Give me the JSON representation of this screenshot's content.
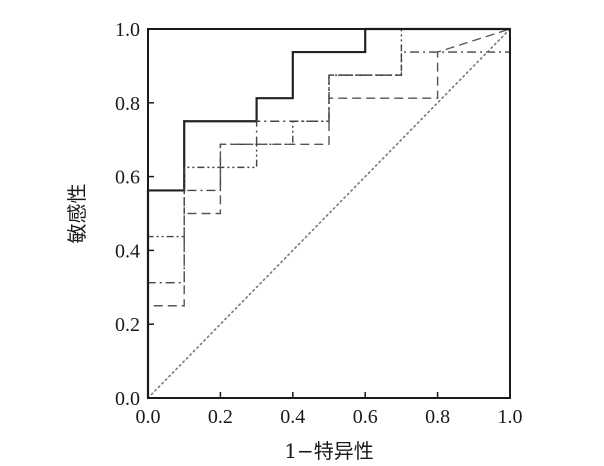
{
  "chart_data": {
    "type": "line",
    "title": "",
    "xlabel": "1−特异性",
    "ylabel": "敏感性",
    "xlim": [
      0,
      1
    ],
    "ylim": [
      0,
      1
    ],
    "x_ticks": [
      "0.0",
      "0.2",
      "0.4",
      "0.6",
      "0.8",
      "1.0"
    ],
    "y_ticks": [
      "0.0",
      "0.2",
      "0.4",
      "0.6",
      "0.8",
      "1.0"
    ],
    "grid": false,
    "legend": "none",
    "colors": {
      "solid": "#222222",
      "dashed": "#555555",
      "dashdot": "#444444",
      "dashdotdot": "#444444",
      "reference": "#777777"
    },
    "series": [
      {
        "style": "solid",
        "x": [
          0,
          0,
          0.1,
          0.1,
          0.3,
          0.3,
          0.4,
          0.4,
          0.6,
          0.6,
          1.0
        ],
        "y": [
          0,
          0.5625,
          0.5625,
          0.75,
          0.75,
          0.8125,
          0.8125,
          0.9375,
          0.9375,
          1.0,
          1.0
        ]
      },
      {
        "style": "dashdot",
        "x": [
          0,
          0,
          0.1,
          0.1,
          0.2,
          0.2,
          0.3,
          0.3,
          0.5,
          0.5,
          0.7,
          0.7,
          1.0,
          1.0
        ],
        "y": [
          0,
          0.3125,
          0.3125,
          0.5625,
          0.5625,
          0.6875,
          0.6875,
          0.75,
          0.75,
          0.875,
          0.875,
          0.9375,
          0.9375,
          1.0
        ]
      },
      {
        "style": "dashdotdot",
        "x": [
          0,
          0,
          0.1,
          0.1,
          0.3,
          0.3,
          0.4,
          0.4,
          0.5,
          0.5,
          0.7,
          0.7,
          1.0
        ],
        "y": [
          0,
          0.4375,
          0.4375,
          0.625,
          0.625,
          0.6875,
          0.6875,
          0.75,
          0.75,
          0.875,
          0.875,
          1.0,
          1.0
        ]
      },
      {
        "style": "dashed",
        "x": [
          0,
          0,
          0.1,
          0.1,
          0.2,
          0.2,
          0.3,
          0.3,
          0.5,
          0.5,
          0.8,
          0.8,
          1.0
        ],
        "y": [
          0,
          0.25,
          0.25,
          0.5,
          0.5,
          0.6875,
          0.6875,
          0.6875,
          0.6875,
          0.8125,
          0.8125,
          0.9375,
          1.0
        ]
      },
      {
        "style": "reference",
        "x": [
          0,
          1
        ],
        "y": [
          0,
          1
        ]
      }
    ]
  }
}
